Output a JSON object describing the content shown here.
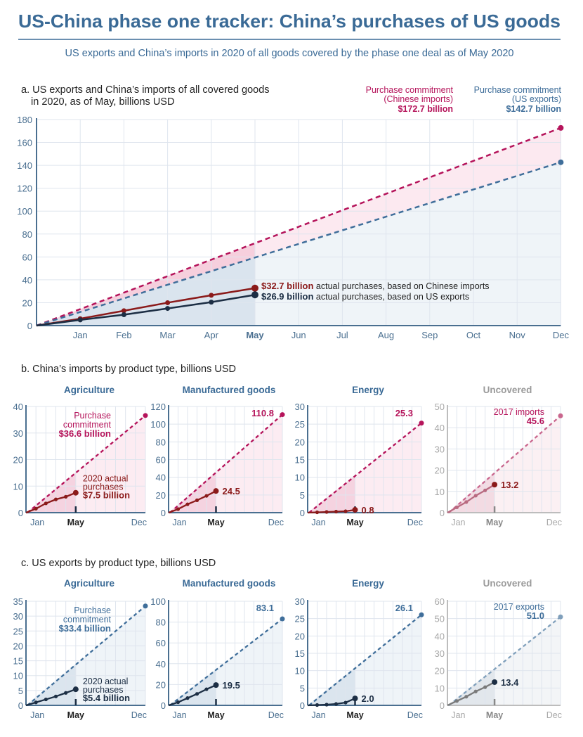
{
  "title": "US-China phase one tracker: China’s purchases of US goods",
  "subtitle": "US exports and China’s imports in 2020 of all goods covered by the phase one deal as of May 2020",
  "colors": {
    "title": "#3a6a96",
    "imports_commitment": "#b5135a",
    "imports_actual": "#8b1a1a",
    "exports_commitment": "#3f6e9a",
    "exports_actual": "#1c2e44",
    "axis": "#4a6f90",
    "uncovered": "#9a9a9a"
  },
  "section_b_title": "b. China’s imports by product type, billions USD",
  "section_c_title": "c. US exports by product type, billions USD",
  "chart_data": [
    {
      "id": "a",
      "type": "line",
      "title_line1": "a. US exports and China’s imports of all covered goods",
      "title_line2": "in 2020, as of May, billions USD",
      "x_ticks": [
        "Jan",
        "Feb",
        "Mar",
        "Apr",
        "May",
        "Jun",
        "Jul",
        "Aug",
        "Sep",
        "Oct",
        "Nov",
        "Dec"
      ],
      "x_highlight": "May",
      "ylim": [
        0,
        180
      ],
      "y_ticks": [
        "0",
        "20",
        "40",
        "60",
        "80",
        "100",
        "120",
        "140",
        "160",
        "180"
      ],
      "grid": true,
      "legend": [
        {
          "line1": "Purchase commitment",
          "line2": "(Chinese imports)",
          "value": "$172.7 billion"
        },
        {
          "line1": "Purchase commitment",
          "line2": "(US exports)",
          "value": "$142.7 billion"
        }
      ],
      "series": [
        {
          "name": "Purchase commitment (Chinese imports)",
          "style": "dashed",
          "x": [
            0,
            12
          ],
          "y": [
            0,
            172.7
          ]
        },
        {
          "name": "Purchase commitment (US exports)",
          "style": "dashed",
          "x": [
            0,
            12
          ],
          "y": [
            0,
            142.7
          ]
        },
        {
          "name": "actual purchases, based on Chinese imports",
          "style": "solid",
          "x": [
            0,
            1,
            2,
            3,
            4,
            5
          ],
          "y": [
            0,
            6,
            13,
            20,
            26.5,
            32.7
          ]
        },
        {
          "name": "actual purchases, based on US exports",
          "style": "solid",
          "x": [
            0,
            1,
            2,
            3,
            4,
            5
          ],
          "y": [
            0,
            5,
            9.5,
            15,
            20.5,
            26.9
          ]
        }
      ],
      "annotations": [
        {
          "value": "$32.7 billion",
          "text": " actual purchases, based on Chinese imports"
        },
        {
          "value": "$26.9 billion",
          "text": " actual purchases, based on US exports"
        }
      ]
    },
    {
      "id": "b1",
      "type": "line",
      "group": "imports",
      "title": "Agriculture",
      "ylim": [
        0,
        40
      ],
      "y_ticks": [
        "0",
        "10",
        "20",
        "30",
        "40"
      ],
      "x_ticks": [
        "Jan",
        "May",
        "Dec"
      ],
      "commitment": 36.6,
      "actual": [
        0,
        1.5,
        3.5,
        5,
        6,
        7.5
      ],
      "commitment_label": [
        "Purchase",
        "commitment",
        "$36.6 billion"
      ],
      "actual_label": [
        "2020 actual",
        "purchases",
        "$7.5 billion"
      ]
    },
    {
      "id": "b2",
      "type": "line",
      "group": "imports",
      "title": "Manufactured goods",
      "ylim": [
        0,
        120
      ],
      "y_ticks": [
        "0",
        "20",
        "40",
        "60",
        "80",
        "100",
        "120"
      ],
      "x_ticks": [
        "Jan",
        "May",
        "Dec"
      ],
      "commitment": 110.8,
      "actual": [
        0,
        4,
        9.5,
        14,
        19,
        24.5
      ],
      "commitment_label": [
        "110.8"
      ],
      "actual_label": [
        "24.5"
      ]
    },
    {
      "id": "b3",
      "type": "line",
      "group": "imports",
      "title": "Energy",
      "ylim": [
        0,
        30
      ],
      "y_ticks": [
        "0",
        "5",
        "10",
        "15",
        "20",
        "25",
        "30"
      ],
      "x_ticks": [
        "Jan",
        "May",
        "Dec"
      ],
      "commitment": 25.3,
      "actual": [
        0,
        0.1,
        0.2,
        0.3,
        0.4,
        0.8
      ],
      "commitment_label": [
        "25.3"
      ],
      "actual_label": [
        "0.8"
      ]
    },
    {
      "id": "b4",
      "type": "line",
      "group": "imports",
      "uncovered": true,
      "title": "Uncovered",
      "ylim": [
        0,
        50
      ],
      "y_ticks": [
        "0",
        "10",
        "20",
        "30",
        "40",
        "50"
      ],
      "x_ticks": [
        "Jan",
        "May",
        "Dec"
      ],
      "commitment": 45.6,
      "actual": [
        0,
        2.5,
        5,
        8,
        10.5,
        13.2
      ],
      "commitment_label": [
        "2017 imports",
        "45.6"
      ],
      "actual_label": [
        "13.2"
      ]
    },
    {
      "id": "c1",
      "type": "line",
      "group": "exports",
      "title": "Agriculture",
      "ylim": [
        0,
        35
      ],
      "y_ticks": [
        "0",
        "5",
        "10",
        "15",
        "20",
        "25",
        "30",
        "35"
      ],
      "x_ticks": [
        "Jan",
        "May",
        "Dec"
      ],
      "commitment": 33.4,
      "actual": [
        0,
        1,
        2,
        3,
        4.2,
        5.4
      ],
      "commitment_label": [
        "Purchase",
        "commitment",
        "$33.4 billion"
      ],
      "actual_label": [
        "2020 actual",
        "purchases",
        "$5.4 billion"
      ]
    },
    {
      "id": "c2",
      "type": "line",
      "group": "exports",
      "title": "Manufactured goods",
      "ylim": [
        0,
        100
      ],
      "y_ticks": [
        "0",
        "20",
        "40",
        "60",
        "80",
        "100"
      ],
      "x_ticks": [
        "Jan",
        "May",
        "Dec"
      ],
      "commitment": 83.1,
      "actual": [
        0,
        3,
        7,
        11,
        15.5,
        19.5
      ],
      "commitment_label": [
        "83.1"
      ],
      "actual_label": [
        "19.5"
      ]
    },
    {
      "id": "c3",
      "type": "line",
      "group": "exports",
      "title": "Energy",
      "ylim": [
        0,
        30
      ],
      "y_ticks": [
        "0",
        "5",
        "10",
        "15",
        "20",
        "25",
        "30"
      ],
      "x_ticks": [
        "Jan",
        "May",
        "Dec"
      ],
      "commitment": 26.1,
      "actual": [
        0,
        0.1,
        0.2,
        0.4,
        0.8,
        2.0
      ],
      "commitment_label": [
        "26.1"
      ],
      "actual_label": [
        "2.0"
      ]
    },
    {
      "id": "c4",
      "type": "line",
      "group": "exports",
      "uncovered": true,
      "title": "Uncovered",
      "ylim": [
        0,
        60
      ],
      "y_ticks": [
        "0",
        "10",
        "20",
        "30",
        "40",
        "50",
        "60"
      ],
      "x_ticks": [
        "Jan",
        "May",
        "Dec"
      ],
      "commitment": 51.0,
      "actual": [
        0,
        2.5,
        5,
        8,
        10.5,
        13.4
      ],
      "commitment_label": [
        "2017 exports",
        "51.0"
      ],
      "actual_label": [
        "13.4"
      ]
    }
  ]
}
